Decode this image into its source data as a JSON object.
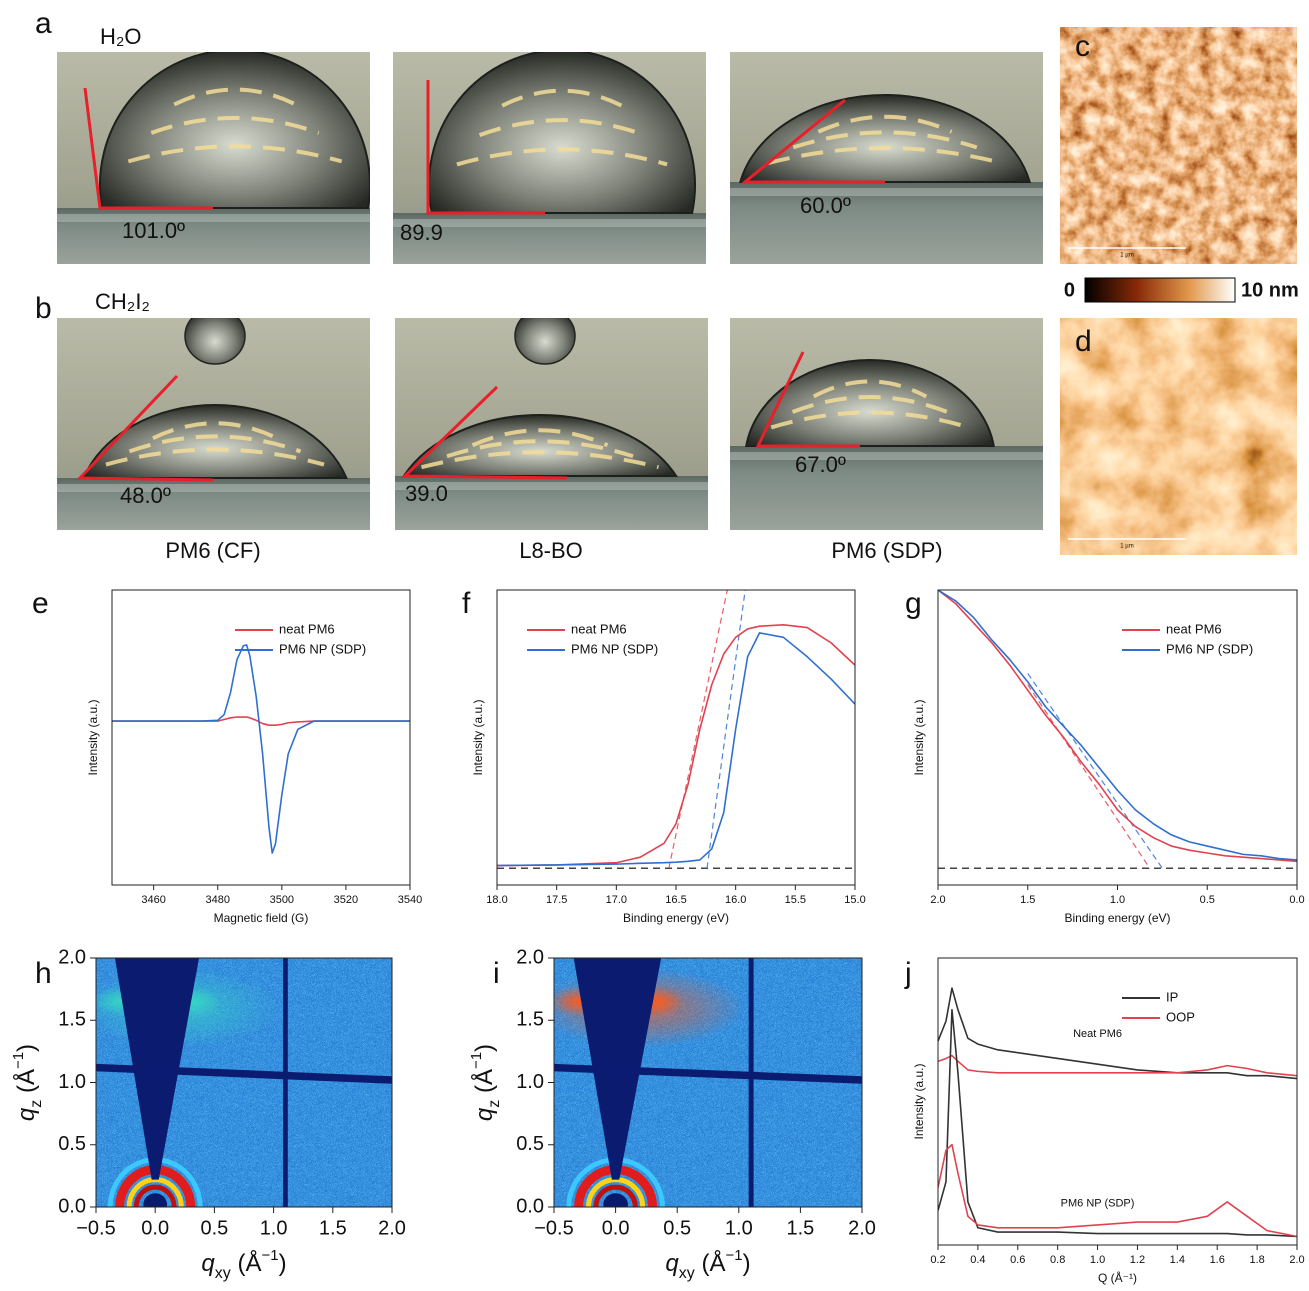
{
  "panel_labels": [
    "a",
    "b",
    "c",
    "d",
    "e",
    "f",
    "g",
    "h",
    "i",
    "j"
  ],
  "contact_angle": {
    "liquids": [
      "H₂O",
      "CH₂I₂"
    ],
    "samples": [
      "PM6 (CF)",
      "L8-BO",
      "PM6 (SDP)"
    ],
    "angles": [
      [
        "101.0º",
        "89.9",
        "60.0º"
      ],
      [
        "48.0º",
        "39.0",
        "67.0º"
      ]
    ]
  },
  "afm": {
    "clim": [
      0,
      10
    ],
    "cticks": [
      0,
      {
        "value": 10,
        "label": "10 nm"
      }
    ],
    "scale_bar": "1 µm"
  },
  "chart_data": [
    {
      "type": "line",
      "x_label": "Magnetic field (G)",
      "y_label": "Intensity (a.u.)",
      "x": [
        3447,
        3455,
        3465,
        3475,
        3480,
        3482,
        3484,
        3486,
        3488,
        3489,
        3490,
        3492,
        3494,
        3496,
        3497,
        3498,
        3500,
        3502,
        3505,
        3510,
        3520,
        3530,
        3540
      ],
      "series": [
        {
          "name": "neat PM6",
          "color": "#e0434f",
          "values": [
            0,
            0,
            0,
            0,
            0,
            0.02,
            0.04,
            0.05,
            0.05,
            0.05,
            0.04,
            0.01,
            -0.03,
            -0.05,
            -0.05,
            -0.05,
            -0.04,
            -0.02,
            -0.01,
            0,
            0,
            0,
            0
          ]
        },
        {
          "name": "PM6 NP (SDP)",
          "color": "#2f6fd0",
          "values": [
            0,
            0,
            0,
            0,
            0.01,
            0.08,
            0.35,
            0.75,
            0.92,
            0.93,
            0.8,
            0.3,
            -0.4,
            -1.3,
            -1.61,
            -1.5,
            -0.9,
            -0.4,
            -0.1,
            0,
            0,
            0,
            0
          ]
        }
      ],
      "xlim": [
        3447,
        3540
      ],
      "ylim": [
        -2,
        1.6
      ],
      "xticks": [
        3460,
        3480,
        3500,
        3520,
        3540
      ],
      "legend": "upper right"
    },
    {
      "type": "line",
      "x_label": "Binding energy (eV)",
      "y_label": "Intensity (a.u.)",
      "x": [
        18,
        17.5,
        17,
        16.8,
        16.6,
        16.5,
        16.4,
        16.3,
        16.2,
        16.1,
        16,
        15.9,
        15.8,
        15.6,
        15.4,
        15.2,
        15
      ],
      "series": [
        {
          "name": "neat PM6",
          "color": "#e0434f",
          "values": [
            0.01,
            0.012,
            0.02,
            0.04,
            0.09,
            0.16,
            0.3,
            0.5,
            0.66,
            0.77,
            0.83,
            0.86,
            0.87,
            0.875,
            0.865,
            0.81,
            0.73
          ]
        },
        {
          "name": "PM6 NP (SDP)",
          "color": "#2f6fd0",
          "values": [
            0.01,
            0.012,
            0.015,
            0.018,
            0.02,
            0.022,
            0.025,
            0.03,
            0.07,
            0.2,
            0.5,
            0.76,
            0.846,
            0.83,
            0.76,
            0.68,
            0.59
          ]
        }
      ],
      "baseline": 0,
      "onset_lines": [
        {
          "color": "#e0434f",
          "x": [
            16.56,
            16.07
          ],
          "values": [
            0,
            1
          ]
        },
        {
          "color": "#2f6fd0",
          "x": [
            16.24,
            15.92
          ],
          "values": [
            0,
            1
          ]
        }
      ],
      "xlim": [
        18,
        15
      ],
      "ylim": [
        -0.06,
        1
      ],
      "xticks": [
        {
          "value": 18,
          "label": "18.0"
        },
        17.5,
        {
          "value": 17,
          "label": "17.0"
        },
        16.5,
        {
          "value": 16,
          "label": "16.0"
        },
        15.5,
        {
          "value": 15,
          "label": "15.0"
        }
      ],
      "legend": "upper left"
    },
    {
      "type": "line",
      "x_label": "Binding energy (eV)",
      "y_label": "Intensity (a.u.)",
      "x": [
        2,
        1.9,
        1.8,
        1.7,
        1.6,
        1.5,
        1.4,
        1.3,
        1.2,
        1.1,
        1,
        0.9,
        0.8,
        0.7,
        0.6,
        0.5,
        0.4,
        0.3,
        0.2,
        0.1,
        0
      ],
      "series": [
        {
          "name": "neat PM6",
          "color": "#e0434f",
          "values": [
            1,
            0.95,
            0.88,
            0.81,
            0.73,
            0.64,
            0.55,
            0.47,
            0.38,
            0.3,
            0.21,
            0.15,
            0.11,
            0.08,
            0.065,
            0.055,
            0.045,
            0.04,
            0.035,
            0.03,
            0.025
          ]
        },
        {
          "name": "PM6 NP (SDP)",
          "color": "#2f6fd0",
          "values": [
            1,
            0.96,
            0.9,
            0.82,
            0.75,
            0.67,
            0.58,
            0.51,
            0.44,
            0.36,
            0.28,
            0.21,
            0.16,
            0.12,
            0.095,
            0.08,
            0.065,
            0.05,
            0.045,
            0.035,
            0.03
          ]
        }
      ],
      "baseline": 0,
      "onset_lines": [
        {
          "color": "#e0434f",
          "x": [
            1.5,
            0.82
          ],
          "values": [
            0.66,
            0
          ]
        },
        {
          "color": "#2f6fd0",
          "x": [
            1.5,
            0.75
          ],
          "values": [
            0.7,
            0
          ]
        }
      ],
      "xlim": [
        2,
        0
      ],
      "ylim": [
        -0.06,
        1
      ],
      "xticks": [
        {
          "value": 2,
          "label": "2.0"
        },
        1.5,
        {
          "value": 1,
          "label": "1.0"
        },
        0.5,
        {
          "value": 0,
          "label": "0.0"
        }
      ],
      "legend": "upper right"
    },
    {
      "type": "image",
      "halo_color": "#36d6c4",
      "x_label": [
        "q",
        "xy",
        " (Å",
        "−1",
        ")"
      ],
      "y_label": [
        "q",
        "z",
        " (Å",
        "−1",
        ")"
      ],
      "xlim": [
        -0.5,
        2
      ],
      "ylim": [
        0,
        2
      ],
      "xticks": [
        {
          "value": -0.5,
          "label": "−0.5"
        },
        {
          "value": 0,
          "label": "0.0"
        },
        0.5,
        {
          "value": 1,
          "label": "1.0"
        },
        1.5,
        {
          "value": 2,
          "label": "2.0"
        }
      ],
      "yticks": [
        {
          "value": 0,
          "label": "0.0"
        },
        0.5,
        {
          "value": 1,
          "label": "1.0"
        },
        1.5,
        {
          "value": 2,
          "label": "2.0"
        }
      ]
    },
    {
      "type": "image",
      "halo_color": "#ff5a1a",
      "x_label": [
        "q",
        "xy",
        " (Å",
        "−1",
        ")"
      ],
      "y_label": [
        "q",
        "z",
        " (Å",
        "−1",
        ")"
      ],
      "xlim": [
        -0.5,
        2
      ],
      "ylim": [
        0,
        2
      ],
      "xticks": [
        {
          "value": -0.5,
          "label": "−0.5"
        },
        {
          "value": 0,
          "label": "0.0"
        },
        0.5,
        {
          "value": 1,
          "label": "1.0"
        },
        1.5,
        {
          "value": 2,
          "label": "2.0"
        }
      ],
      "yticks": [
        {
          "value": 0,
          "label": "0.0"
        },
        0.5,
        {
          "value": 1,
          "label": "1.0"
        },
        1.5,
        {
          "value": 2,
          "label": "2.0"
        }
      ]
    },
    {
      "type": "line",
      "x_label": "Q (Å⁻¹)",
      "y_label": "Intensity (a.u.)",
      "x": [
        0.2,
        0.24,
        0.27,
        0.3,
        0.35,
        0.4,
        0.5,
        0.8,
        1,
        1.2,
        1.4,
        1.55,
        1.65,
        1.75,
        1.85,
        2
      ],
      "series": [
        {
          "name": "IP",
          "color": "#333333"
        },
        {
          "name": "OOP",
          "color": "#e0434f"
        }
      ],
      "groups": [
        {
          "label": "Neat PM6",
          "values": [
            [
              0.71,
              0.78,
              0.895,
              0.82,
              0.72,
              0.7,
              0.68,
              0.65,
              0.63,
              0.61,
              0.6,
              0.6,
              0.6,
              0.59,
              0.59,
              0.58
            ],
            [
              0.64,
              0.65,
              0.66,
              0.64,
              0.61,
              0.605,
              0.6,
              0.6,
              0.6,
              0.6,
              0.6,
              0.61,
              0.625,
              0.615,
              0.6,
              0.59
            ]
          ]
        },
        {
          "label": "PM6 NP (SDP)",
          "values": [
            [
              0.12,
              0.22,
              0.82,
              0.6,
              0.15,
              0.06,
              0.045,
              0.045,
              0.04,
              0.04,
              0.04,
              0.04,
              0.04,
              0.035,
              0.035,
              0.03
            ],
            [
              0.2,
              0.33,
              0.35,
              0.25,
              0.1,
              0.07,
              0.06,
              0.06,
              0.07,
              0.08,
              0.08,
              0.1,
              0.15,
              0.1,
              0.05,
              0.03
            ]
          ]
        }
      ],
      "xlim": [
        0.2,
        2
      ],
      "ylim": [
        0,
        1
      ],
      "xticks": [
        0.2,
        0.4,
        0.6,
        0.8,
        {
          "value": 1,
          "label": "1.0"
        },
        1.2,
        1.4,
        1.6,
        1.8,
        {
          "value": 2,
          "label": "2.0"
        }
      ],
      "legend": "upper right"
    }
  ]
}
